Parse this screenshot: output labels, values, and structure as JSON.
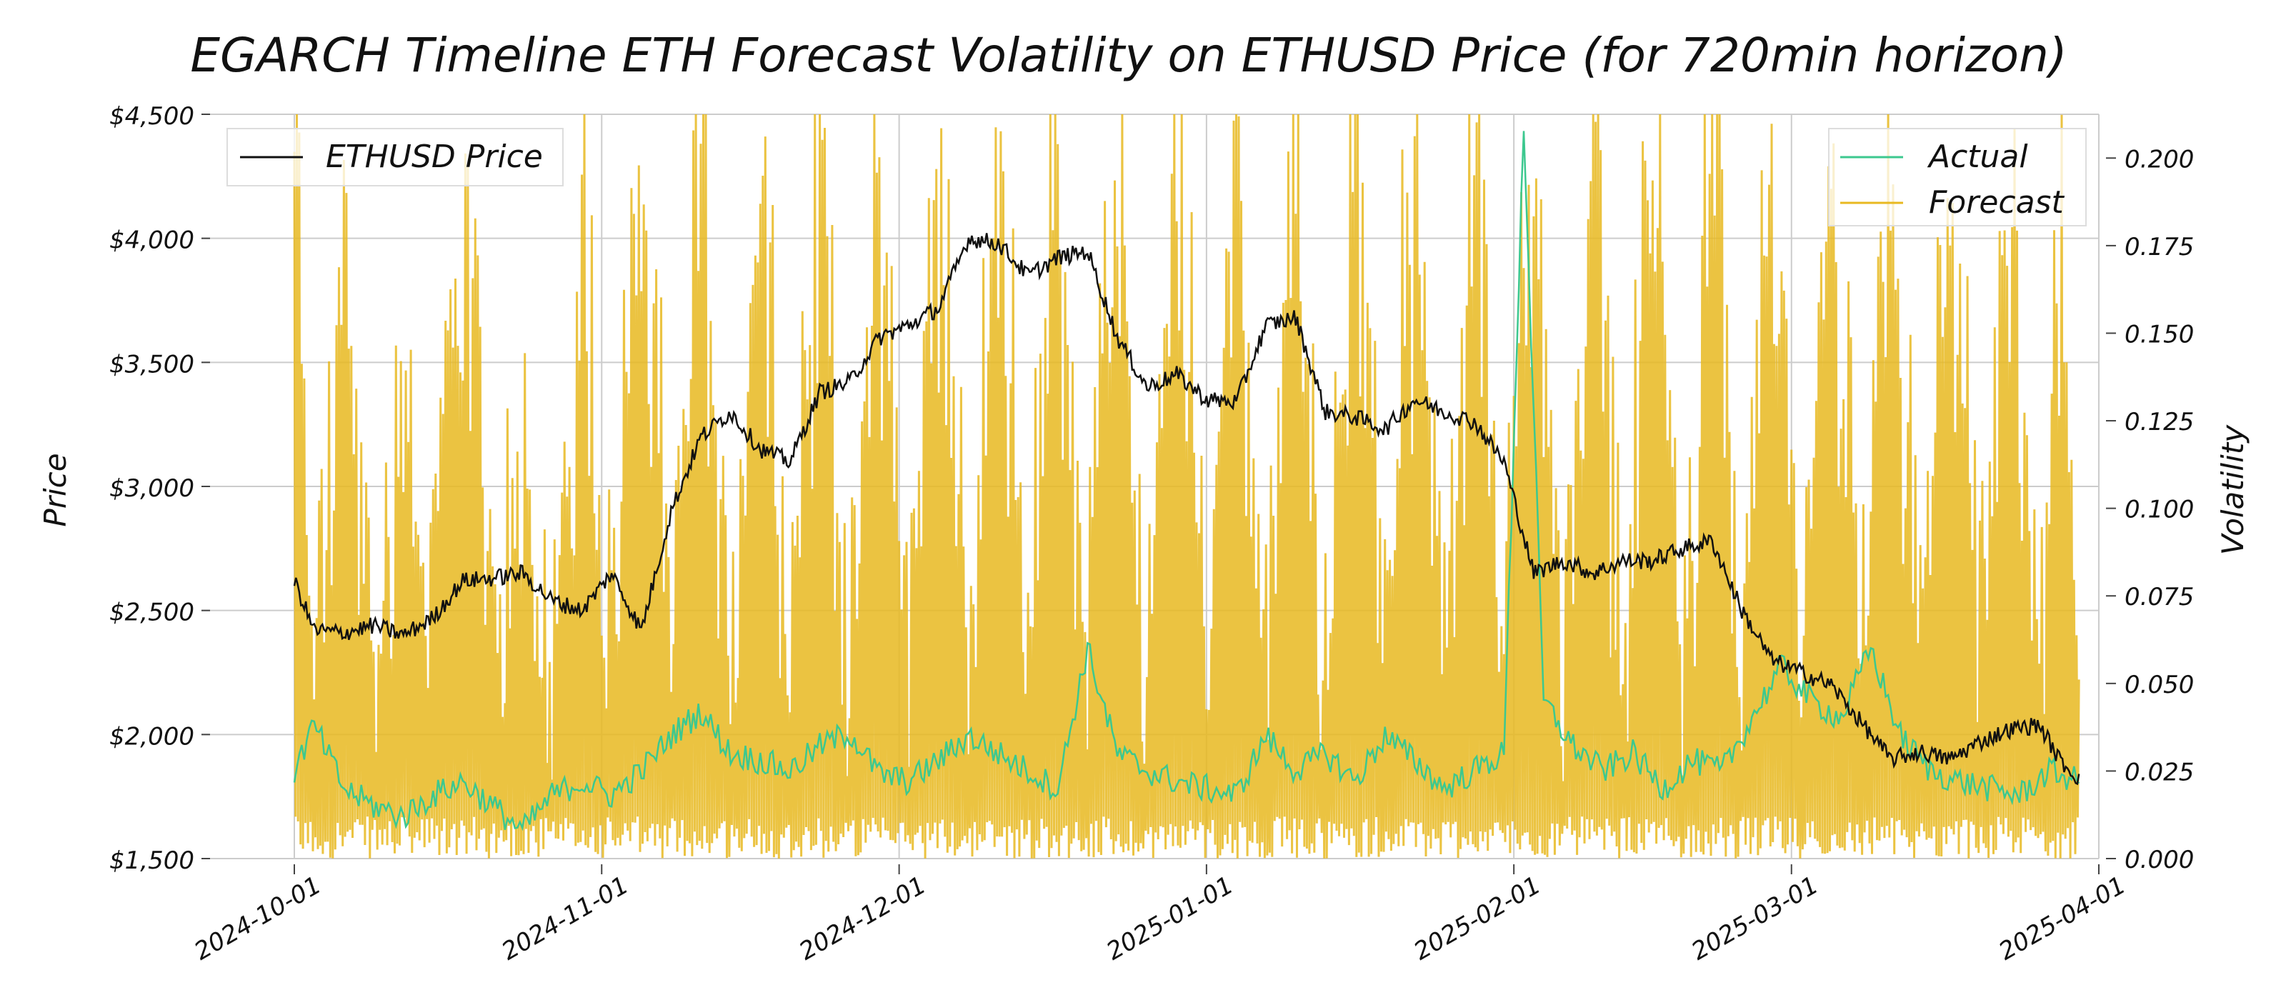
{
  "chart_data": {
    "type": "line",
    "title": "EGARCH Timeline ETH Forecast Volatility on ETHUSD Price (for 720min horizon)",
    "ylabel": "Price",
    "y2label": "Volatility",
    "x_ticks": [
      "2024-10-01",
      "2024-11-01",
      "2024-12-01",
      "2025-01-01",
      "2025-02-01",
      "2025-03-01",
      "2025-04-01"
    ],
    "xlim": [
      "2024-10-01",
      "2025-04-01"
    ],
    "y_ticks": [
      "$1,500",
      "$2,000",
      "$2,500",
      "$3,000",
      "$3,500",
      "$4,000",
      "$4,500"
    ],
    "ylim": [
      1500,
      4500
    ],
    "y2_ticks": [
      "0.000",
      "0.025",
      "0.050",
      "0.075",
      "0.100",
      "0.125",
      "0.150",
      "0.175",
      "0.200"
    ],
    "y2lim": [
      0,
      0.2125
    ],
    "grid": true,
    "legend_left": {
      "placement": "top-left",
      "entries": [
        "ETHUSD Price"
      ]
    },
    "legend_right": {
      "placement": "top-right",
      "entries": [
        "Actual",
        "Forecast"
      ]
    },
    "colors": {
      "price": "#111111",
      "actual": "#3cc88f",
      "forecast": "#e8b820"
    },
    "series": [
      {
        "name": "ETHUSD Price",
        "axis": "left",
        "points": [
          [
            "2024-10-01",
            2620
          ],
          [
            "2024-10-03",
            2420
          ],
          [
            "2024-10-06",
            2410
          ],
          [
            "2024-10-09",
            2440
          ],
          [
            "2024-10-12",
            2400
          ],
          [
            "2024-10-15",
            2470
          ],
          [
            "2024-10-18",
            2620
          ],
          [
            "2024-10-21",
            2630
          ],
          [
            "2024-10-24",
            2650
          ],
          [
            "2024-10-27",
            2540
          ],
          [
            "2024-10-30",
            2500
          ],
          [
            "2024-11-02",
            2650
          ],
          [
            "2024-11-05",
            2420
          ],
          [
            "2024-11-08",
            2900
          ],
          [
            "2024-11-11",
            3200
          ],
          [
            "2024-11-14",
            3300
          ],
          [
            "2024-11-17",
            3150
          ],
          [
            "2024-11-20",
            3100
          ],
          [
            "2024-11-23",
            3380
          ],
          [
            "2024-11-26",
            3420
          ],
          [
            "2024-11-29",
            3600
          ],
          [
            "2024-12-02",
            3650
          ],
          [
            "2024-12-05",
            3720
          ],
          [
            "2024-12-08",
            4000
          ],
          [
            "2024-12-11",
            3980
          ],
          [
            "2024-12-14",
            3850
          ],
          [
            "2024-12-17",
            3920
          ],
          [
            "2024-12-20",
            3950
          ],
          [
            "2024-12-23",
            3600
          ],
          [
            "2024-12-26",
            3400
          ],
          [
            "2024-12-29",
            3450
          ],
          [
            "2025-01-01",
            3350
          ],
          [
            "2025-01-04",
            3340
          ],
          [
            "2025-01-07",
            3650
          ],
          [
            "2025-01-10",
            3680
          ],
          [
            "2025-01-13",
            3300
          ],
          [
            "2025-01-16",
            3280
          ],
          [
            "2025-01-19",
            3230
          ],
          [
            "2025-01-22",
            3350
          ],
          [
            "2025-01-25",
            3300
          ],
          [
            "2025-01-28",
            3260
          ],
          [
            "2025-01-31",
            3100
          ],
          [
            "2025-02-03",
            2650
          ],
          [
            "2025-02-06",
            2700
          ],
          [
            "2025-02-09",
            2650
          ],
          [
            "2025-02-12",
            2700
          ],
          [
            "2025-02-15",
            2700
          ],
          [
            "2025-02-18",
            2750
          ],
          [
            "2025-02-21",
            2780
          ],
          [
            "2025-02-24",
            2500
          ],
          [
            "2025-02-27",
            2300
          ],
          [
            "2025-03-02",
            2250
          ],
          [
            "2025-03-05",
            2200
          ],
          [
            "2025-03-08",
            2050
          ],
          [
            "2025-03-11",
            1900
          ],
          [
            "2025-03-14",
            1930
          ],
          [
            "2025-03-17",
            1900
          ],
          [
            "2025-03-20",
            1970
          ],
          [
            "2025-03-23",
            2020
          ],
          [
            "2025-03-26",
            2040
          ],
          [
            "2025-03-28",
            1900
          ],
          [
            "2025-03-30",
            1820
          ]
        ]
      },
      {
        "name": "Actual",
        "axis": "right",
        "points": [
          [
            "2024-10-01",
            0.025
          ],
          [
            "2024-10-03",
            0.038
          ],
          [
            "2024-10-06",
            0.02
          ],
          [
            "2024-10-09",
            0.015
          ],
          [
            "2024-10-12",
            0.012
          ],
          [
            "2024-10-15",
            0.018
          ],
          [
            "2024-10-18",
            0.022
          ],
          [
            "2024-10-21",
            0.015
          ],
          [
            "2024-10-24",
            0.008
          ],
          [
            "2024-10-27",
            0.018
          ],
          [
            "2024-10-30",
            0.022
          ],
          [
            "2024-11-02",
            0.018
          ],
          [
            "2024-11-05",
            0.025
          ],
          [
            "2024-11-08",
            0.035
          ],
          [
            "2024-11-11",
            0.042
          ],
          [
            "2024-11-14",
            0.03
          ],
          [
            "2024-11-17",
            0.028
          ],
          [
            "2024-11-20",
            0.025
          ],
          [
            "2024-11-23",
            0.032
          ],
          [
            "2024-11-26",
            0.036
          ],
          [
            "2024-11-29",
            0.024
          ],
          [
            "2024-12-02",
            0.022
          ],
          [
            "2024-12-05",
            0.028
          ],
          [
            "2024-12-08",
            0.035
          ],
          [
            "2024-12-11",
            0.03
          ],
          [
            "2024-12-14",
            0.025
          ],
          [
            "2024-12-17",
            0.02
          ],
          [
            "2024-12-20",
            0.06
          ],
          [
            "2024-12-23",
            0.03
          ],
          [
            "2024-12-26",
            0.025
          ],
          [
            "2024-12-29",
            0.022
          ],
          [
            "2025-01-01",
            0.02
          ],
          [
            "2025-01-04",
            0.018
          ],
          [
            "2025-01-07",
            0.035
          ],
          [
            "2025-01-10",
            0.025
          ],
          [
            "2025-01-13",
            0.03
          ],
          [
            "2025-01-16",
            0.022
          ],
          [
            "2025-01-19",
            0.035
          ],
          [
            "2025-01-22",
            0.028
          ],
          [
            "2025-01-25",
            0.02
          ],
          [
            "2025-01-28",
            0.025
          ],
          [
            "2025-01-31",
            0.03
          ],
          [
            "2025-02-02",
            0.21
          ],
          [
            "2025-02-04",
            0.045
          ],
          [
            "2025-02-07",
            0.032
          ],
          [
            "2025-02-10",
            0.025
          ],
          [
            "2025-02-13",
            0.03
          ],
          [
            "2025-02-16",
            0.02
          ],
          [
            "2025-02-19",
            0.028
          ],
          [
            "2025-02-22",
            0.025
          ],
          [
            "2025-02-25",
            0.04
          ],
          [
            "2025-02-28",
            0.055
          ],
          [
            "2025-03-03",
            0.045
          ],
          [
            "2025-03-06",
            0.04
          ],
          [
            "2025-03-09",
            0.06
          ],
          [
            "2025-03-12",
            0.035
          ],
          [
            "2025-03-15",
            0.025
          ],
          [
            "2025-03-18",
            0.022
          ],
          [
            "2025-03-21",
            0.02
          ],
          [
            "2025-03-24",
            0.018
          ],
          [
            "2025-03-27",
            0.025
          ],
          [
            "2025-03-30",
            0.022
          ]
        ]
      },
      {
        "name": "Forecast",
        "axis": "right",
        "style": "dense high-frequency bands filling most of the plot",
        "points": [
          [
            "2024-10-01",
            0.21
          ],
          [
            "2024-10-03",
            0.02
          ],
          [
            "2024-10-06",
            0.16
          ],
          [
            "2024-10-09",
            0.01
          ],
          [
            "2024-10-12",
            0.13
          ],
          [
            "2024-10-15",
            0.03
          ],
          [
            "2024-10-18",
            0.21
          ],
          [
            "2024-10-21",
            0.02
          ],
          [
            "2024-10-24",
            0.1
          ],
          [
            "2024-10-27",
            0.01
          ],
          [
            "2024-10-30",
            0.18
          ],
          [
            "2024-11-02",
            0.03
          ],
          [
            "2024-11-05",
            0.21
          ],
          [
            "2024-11-08",
            0.02
          ],
          [
            "2024-11-11",
            0.21
          ],
          [
            "2024-11-14",
            0.01
          ],
          [
            "2024-11-17",
            0.21
          ],
          [
            "2024-11-20",
            0.02
          ],
          [
            "2024-11-23",
            0.21
          ],
          [
            "2024-11-26",
            0.01
          ],
          [
            "2024-11-29",
            0.21
          ],
          [
            "2024-12-02",
            0.02
          ],
          [
            "2024-12-05",
            0.21
          ],
          [
            "2024-12-08",
            0.01
          ],
          [
            "2024-12-11",
            0.21
          ],
          [
            "2024-12-14",
            0.03
          ],
          [
            "2024-12-17",
            0.21
          ],
          [
            "2024-12-20",
            0.02
          ],
          [
            "2024-12-23",
            0.21
          ],
          [
            "2024-12-26",
            0.01
          ],
          [
            "2024-12-29",
            0.21
          ],
          [
            "2025-01-01",
            0.03
          ],
          [
            "2025-01-04",
            0.21
          ],
          [
            "2025-01-07",
            0.02
          ],
          [
            "2025-01-10",
            0.21
          ],
          [
            "2025-01-13",
            0.01
          ],
          [
            "2025-01-16",
            0.21
          ],
          [
            "2025-01-19",
            0.02
          ],
          [
            "2025-01-22",
            0.21
          ],
          [
            "2025-01-25",
            0.01
          ],
          [
            "2025-01-28",
            0.21
          ],
          [
            "2025-01-31",
            0.02
          ],
          [
            "2025-02-03",
            0.21
          ],
          [
            "2025-02-06",
            0.01
          ],
          [
            "2025-02-09",
            0.21
          ],
          [
            "2025-02-12",
            0.02
          ],
          [
            "2025-02-15",
            0.21
          ],
          [
            "2025-02-18",
            0.01
          ],
          [
            "2025-02-21",
            0.21
          ],
          [
            "2025-02-24",
            0.02
          ],
          [
            "2025-02-27",
            0.21
          ],
          [
            "2025-03-02",
            0.01
          ],
          [
            "2025-03-05",
            0.21
          ],
          [
            "2025-03-08",
            0.02
          ],
          [
            "2025-03-11",
            0.21
          ],
          [
            "2025-03-14",
            0.01
          ],
          [
            "2025-03-17",
            0.21
          ],
          [
            "2025-03-20",
            0.02
          ],
          [
            "2025-03-23",
            0.18
          ],
          [
            "2025-03-26",
            0.01
          ],
          [
            "2025-03-28",
            0.21
          ],
          [
            "2025-03-30",
            0.02
          ]
        ]
      }
    ]
  }
}
